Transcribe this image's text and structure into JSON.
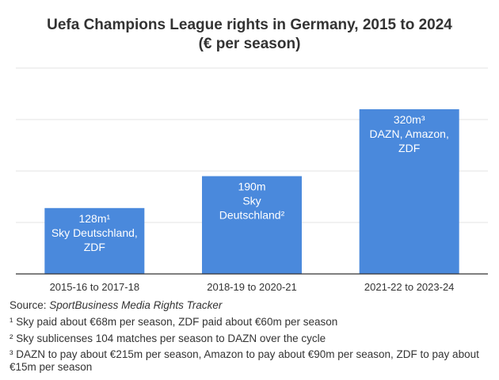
{
  "chart_data": {
    "type": "bar",
    "title_line1": "Uefa Champions League rights in Germany, 2015 to 2024",
    "title_line2": "(€ per season)",
    "categories": [
      "2015-16 to 2017-18",
      "2018-19 to 2020-21",
      "2021-22 to 2023-24"
    ],
    "values": [
      128,
      190,
      320
    ],
    "unit": "m",
    "bar_labels": [
      [
        "128m¹",
        "Sky Deutschland,",
        "ZDF"
      ],
      [
        "190m",
        "Sky",
        "Deutschland²"
      ],
      [
        "320m³",
        "DAZN, Amazon,",
        "ZDF"
      ]
    ],
    "ylim": [
      0,
      400
    ],
    "grid": true,
    "bar_color": "#4a89dc",
    "grid_color": "#e3e3e3",
    "axis_color": "#333333"
  },
  "source": {
    "prefix": "Source: ",
    "name": "SportBusiness Media Rights Tracker"
  },
  "footnotes": [
    "¹ Sky paid about €68m per season, ZDF paid about €60m per season",
    "² Sky sublicenses 104 matches per season to DAZN over the cycle",
    "³ DAZN to pay about €215m per season, Amazon to pay about €90m per season, ZDF to pay about €15m per season"
  ]
}
